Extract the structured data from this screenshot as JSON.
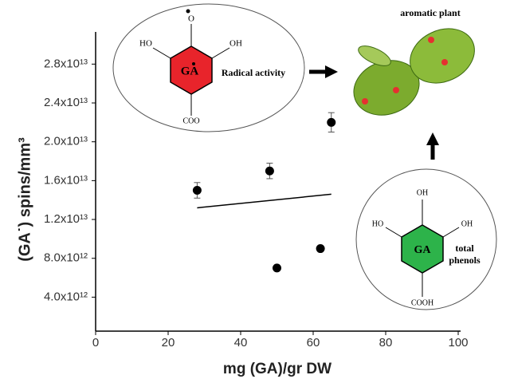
{
  "chart_data": {
    "type": "scatter",
    "xlabel": "mg (GA)/gr DW",
    "ylabel": "(GA˙)  spins/mm³",
    "xlim": [
      0,
      100
    ],
    "xticks": [
      0,
      20,
      40,
      60,
      80,
      100
    ],
    "ylim": [
      500000000000,
      30000000000000
    ],
    "yticks": [
      {
        "value": 4000000000000,
        "label": "4.0x10¹²"
      },
      {
        "value": 8000000000000,
        "label": "8.0x10¹²"
      },
      {
        "value": 12000000000000,
        "label": "1.2x10¹³"
      },
      {
        "value": 16000000000000,
        "label": "1.6x10¹³"
      },
      {
        "value": 20000000000000,
        "label": "2.0x10¹³"
      },
      {
        "value": 24000000000000,
        "label": "2.4x10¹³"
      },
      {
        "value": 28000000000000,
        "label": "2.8x10¹³"
      }
    ],
    "series": [
      {
        "color": "#000000",
        "x": [
          28,
          48,
          50,
          62,
          65
        ],
        "values": [
          15000000000000,
          17000000000000,
          7000000000000,
          9000000000000,
          22000000000000
        ],
        "errors": [
          800000000000,
          800000000000,
          null,
          null,
          1000000000000
        ]
      },
      {
        "type": "line",
        "color": "#000000",
        "x": [
          28,
          65
        ],
        "values": [
          13200000000000,
          14600000000000
        ]
      }
    ]
  },
  "diagrams": {
    "radical": {
      "radical_o": "O",
      "ho": "HO",
      "oh": "OH",
      "ring": "GA",
      "label": "Radical activity",
      "bottom": "COO"
    },
    "plant": {
      "label": "aromatic plant"
    },
    "phenols": {
      "top": "OH",
      "ho": "HO",
      "oh": "OH",
      "ring": "GA",
      "label1": "total",
      "label2": "phenols",
      "bottom": "COOH"
    }
  }
}
